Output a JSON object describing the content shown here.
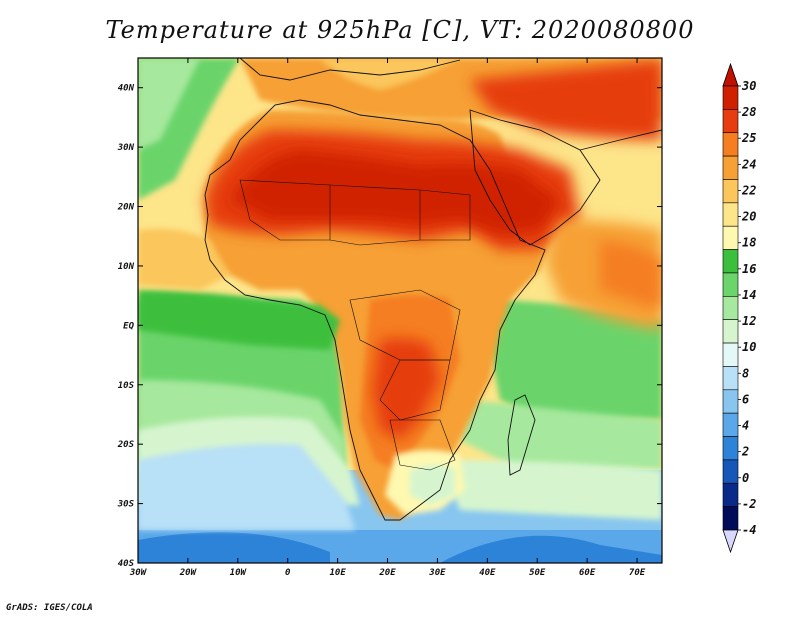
{
  "title": "Temperature at 925hPa [C], VT: 2020080800",
  "footer": "GrADS: IGES/COLA",
  "map": {
    "projection": "lat-lon",
    "lon_range": [
      -30,
      75
    ],
    "lat_range": [
      -40,
      45
    ],
    "lon_ticks": [
      "30W",
      "20W",
      "10W",
      "0",
      "10E",
      "20E",
      "30E",
      "40E",
      "50E",
      "60E",
      "70E"
    ],
    "lat_ticks": [
      "40N",
      "30N",
      "20N",
      "10N",
      "EQ",
      "10S",
      "20S",
      "30S",
      "40S"
    ],
    "variable": "temperature_925hPa_C",
    "valid_time": "2020080800"
  },
  "colorbar": {
    "levels": [
      "30",
      "28",
      "25",
      "24",
      "22",
      "20",
      "18",
      "16",
      "14",
      "12",
      "10",
      "8",
      "6",
      "4",
      "2",
      "0",
      "-2",
      "-4"
    ],
    "colors": [
      "#d02000",
      "#e63c10",
      "#f57e20",
      "#f6a035",
      "#fbc65b",
      "#fde58a",
      "#fef8b0",
      "#3cbf3c",
      "#6bd46b",
      "#a6e89d",
      "#d6f5cf",
      "#e4f8f8",
      "#b8e0f7",
      "#88c6f0",
      "#5aa8e9",
      "#2d83d8",
      "#1657b8",
      "#0a2a8a",
      "#000b5a"
    ],
    "low_end_color": "#d8d8ff",
    "high_end_color": "#c01000"
  }
}
